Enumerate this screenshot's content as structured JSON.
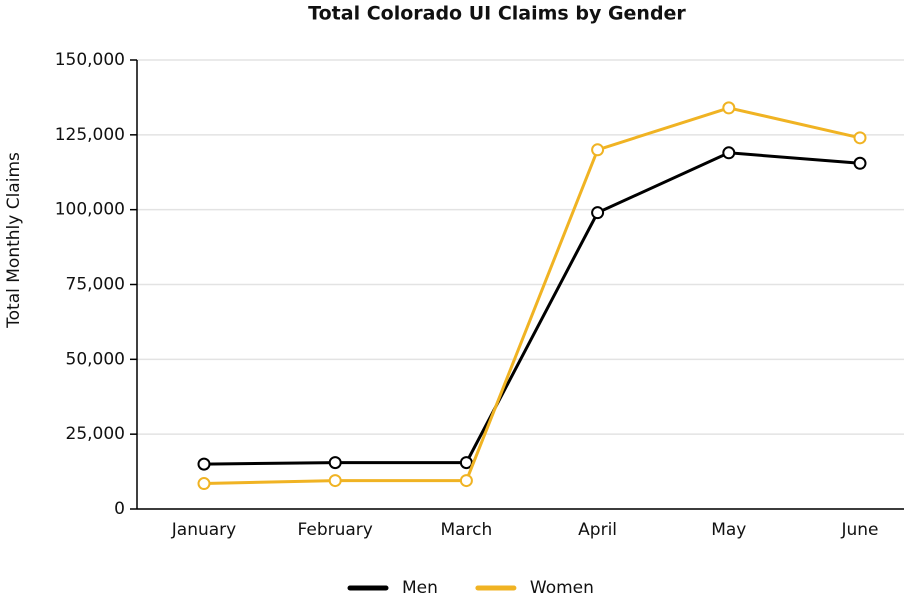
{
  "chart_data": {
    "type": "line",
    "title": "Total Colorado UI Claims by Gender",
    "y_label": "Total Monthly Claims",
    "categories": [
      "January",
      "February",
      "March",
      "April",
      "May",
      "June"
    ],
    "series": [
      {
        "name": "Men",
        "color": "#000000",
        "values": [
          15000,
          15500,
          15500,
          99000,
          119000,
          115500
        ]
      },
      {
        "name": "Women",
        "color": "#f0b323",
        "values": [
          8500,
          9500,
          9500,
          120000,
          134000,
          124000
        ]
      }
    ],
    "ylim": [
      0,
      150000
    ],
    "yticks": [
      0,
      {
        "value": 25000,
        "label": "25,000"
      },
      {
        "value": 50000,
        "label": "50,000"
      },
      {
        "value": 75000,
        "label": "75,000"
      },
      {
        "value": 100000,
        "label": "100,000"
      },
      {
        "value": 125000,
        "label": "125,000"
      },
      {
        "value": 150000,
        "label": "150,000"
      }
    ],
    "grid": true,
    "legend": "bottom"
  }
}
